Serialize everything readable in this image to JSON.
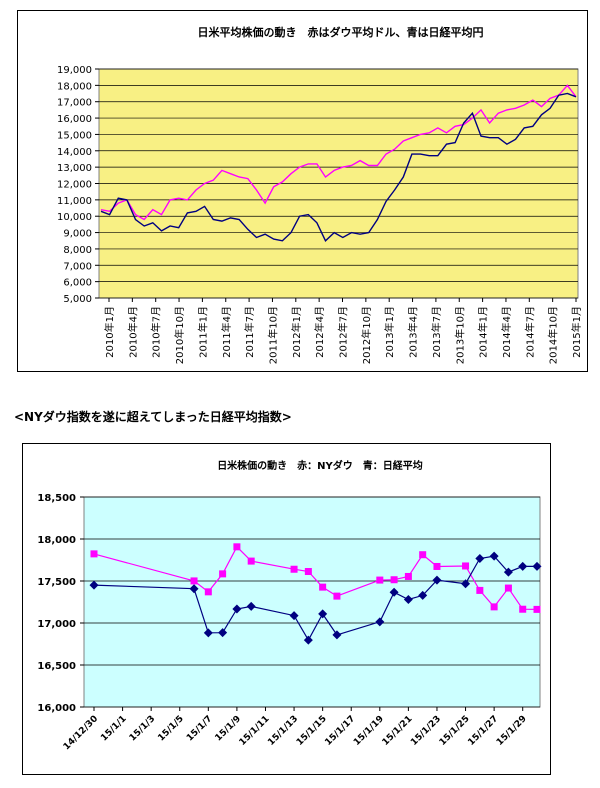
{
  "caption": "<NYダウ指数を遂に超えてしまった日経平均指数>",
  "chart_data": [
    {
      "type": "line",
      "title": "日米平均株価の動き　赤はダウ平均ドル、青は日経平均円",
      "plot_background": "#f8f084",
      "grid": true,
      "legend": "none",
      "ylim": [
        5000,
        19000
      ],
      "yticks": [
        "5,000",
        "6,000",
        "7,000",
        "8,000",
        "9,000",
        "10,000",
        "11,000",
        "12,000",
        "13,000",
        "14,000",
        "15,000",
        "16,000",
        "17,000",
        "18,000",
        "19,000"
      ],
      "yvalues": [
        5000,
        6000,
        7000,
        8000,
        9000,
        10000,
        11000,
        12000,
        13000,
        14000,
        15000,
        16000,
        17000,
        18000,
        19000
      ],
      "xticks": [
        "2010年1月",
        "2010年4月",
        "2010年7月",
        "2010年10月",
        "2011年1月",
        "2011年4月",
        "2011年7月",
        "2011年10月",
        "2012年1月",
        "2012年4月",
        "2012年7月",
        "2012年10月",
        "2013年1月",
        "2013年4月",
        "2013年7月",
        "2013年10月",
        "2014年1月",
        "2014年4月",
        "2014年7月",
        "2014年10月",
        "2015年1月"
      ],
      "series": [
        {
          "color": "#ff00ff",
          "values": [
            10400,
            10300,
            10800,
            11000,
            10100,
            9800,
            10400,
            10100,
            11000,
            11100,
            11000,
            11600,
            12000,
            12200,
            12800,
            12600,
            12400,
            12300,
            11600,
            10800,
            11800,
            12100,
            12600,
            13000,
            13200,
            13200,
            12400,
            12800,
            13000,
            13100,
            13400,
            13100,
            13100,
            13800,
            14100,
            14600,
            14800,
            15000,
            15100,
            15400,
            15100,
            15500,
            15600,
            16000,
            16500,
            15700,
            16300,
            16500,
            16600,
            16800,
            17100,
            16700,
            17200,
            17400,
            18000,
            17300
          ]
        },
        {
          "color": "#000080",
          "values": [
            10300,
            10100,
            11100,
            11000,
            9800,
            9400,
            9600,
            9100,
            9400,
            9300,
            10200,
            10300,
            10600,
            9800,
            9700,
            9900,
            9800,
            9200,
            8700,
            8900,
            8600,
            8500,
            9000,
            10000,
            10100,
            9600,
            8500,
            9000,
            8700,
            9000,
            8900,
            9000,
            9800,
            10900,
            11600,
            12400,
            13800,
            13800,
            13700,
            13700,
            14400,
            14500,
            15700,
            16300,
            14900,
            14800,
            14800,
            14400,
            14700,
            15400,
            15500,
            16200,
            16600,
            17400,
            17500,
            17300
          ]
        }
      ]
    },
    {
      "type": "line",
      "title": "日米株価の動き　赤：NYダウ　青：日経平均",
      "plot_background": "#ccffff",
      "grid": true,
      "legend": "none",
      "ylim": [
        16000,
        18500
      ],
      "yticks": [
        "16,000",
        "16,500",
        "17,000",
        "17,500",
        "18,000",
        "18,500"
      ],
      "yvalues": [
        16000,
        16500,
        17000,
        17500,
        18000,
        18500
      ],
      "xticks": [
        "14/12/30",
        "15/1/1",
        "15/1/3",
        "15/1/5",
        "15/1/7",
        "15/1/9",
        "15/1/11",
        "15/1/13",
        "15/1/15",
        "15/1/17",
        "15/1/19",
        "15/1/21",
        "15/1/23",
        "15/1/25",
        "15/1/27",
        "15/1/29"
      ],
      "series": [
        {
          "color": "#ff00ff",
          "x": [
            0,
            7,
            8,
            9,
            10,
            11,
            14,
            15,
            16,
            17,
            20,
            21,
            22,
            23,
            24,
            26,
            27,
            28,
            29,
            30,
            31
          ],
          "values": [
            17823,
            17501,
            17371,
            17585,
            17907,
            17737,
            17640,
            17613,
            17427,
            17320,
            17511,
            17515,
            17554,
            17813,
            17673,
            17679,
            17388,
            17192,
            17416,
            17164,
            17162
          ]
        },
        {
          "color": "#000080",
          "x": [
            0,
            7,
            8,
            9,
            10,
            11,
            14,
            15,
            16,
            17,
            20,
            21,
            22,
            23,
            24,
            26,
            27,
            28,
            29,
            30,
            31
          ],
          "values": [
            17451,
            17408,
            16883,
            16885,
            17167,
            17198,
            17088,
            16796,
            17108,
            16858,
            17014,
            17366,
            17280,
            17329,
            17511,
            17468,
            17768,
            17796,
            17606,
            17674,
            17674
          ]
        }
      ]
    }
  ]
}
